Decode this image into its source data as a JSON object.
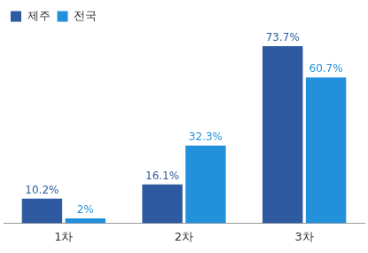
{
  "chart_data": {
    "type": "bar",
    "categories": [
      "1차",
      "2차",
      "3차"
    ],
    "series": [
      {
        "name": "제주",
        "color": "#2d5aa0",
        "values": [
          10.2,
          16.1,
          73.7
        ],
        "value_labels": [
          "10.2%",
          "16.1%",
          "73.7%"
        ]
      },
      {
        "name": "전국",
        "color": "#2390dc",
        "values": [
          2,
          32.3,
          60.7
        ],
        "value_labels": [
          "2%",
          "32.3%",
          "60.7%"
        ]
      }
    ],
    "ylim": [
      0,
      80
    ],
    "grid": false,
    "legend": "top-left",
    "data_labels": true,
    "tick_labels": "x"
  }
}
